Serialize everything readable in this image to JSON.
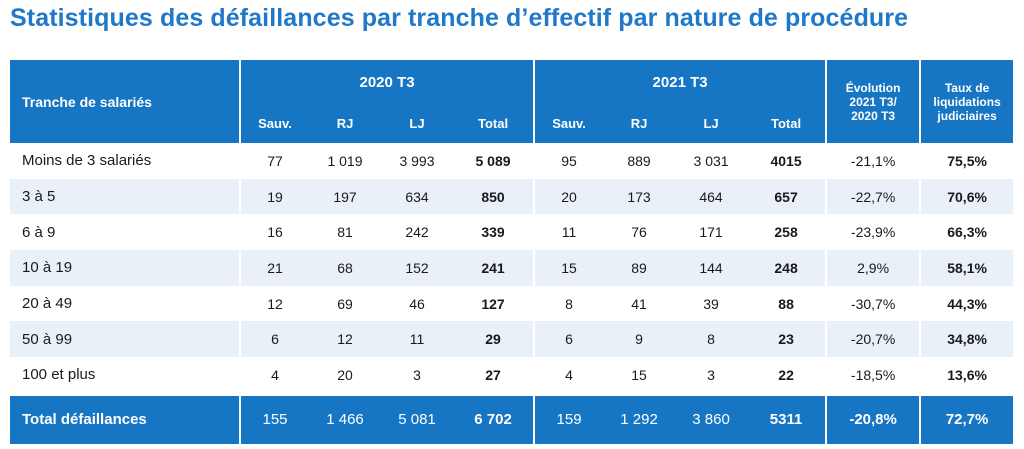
{
  "title": "Statistiques des défaillances par tranche d’effectif par nature de procédure",
  "colors": {
    "header_blue": "#1776c4",
    "title_blue": "#1f78c8",
    "stripe": "#e9f0f8"
  },
  "header": {
    "row_label": "Tranche de salariés",
    "group1": "2020 T3",
    "group2": "2021 T3",
    "evolution": [
      "Évolution",
      "2021 T3/",
      "2020 T3"
    ],
    "taux": [
      "Taux de",
      "liquidations",
      "judiciaires"
    ],
    "subcols": [
      "Sauv.",
      "RJ",
      "LJ",
      "Total"
    ]
  },
  "rows": [
    {
      "label": "Moins de 3 salariés",
      "y2020": [
        "77",
        "1 019",
        "3 993",
        "5 089"
      ],
      "y2021": [
        "95",
        "889",
        "3 031",
        "4015"
      ],
      "evolution": "-21,1%",
      "taux": "75,5%"
    },
    {
      "label": "3 à 5",
      "y2020": [
        "19",
        "197",
        "634",
        "850"
      ],
      "y2021": [
        "20",
        "173",
        "464",
        "657"
      ],
      "evolution": "-22,7%",
      "taux": "70,6%"
    },
    {
      "label": "6 à 9",
      "y2020": [
        "16",
        "81",
        "242",
        "339"
      ],
      "y2021": [
        "11",
        "76",
        "171",
        "258"
      ],
      "evolution": "-23,9%",
      "taux": "66,3%"
    },
    {
      "label": "10 à 19",
      "y2020": [
        "21",
        "68",
        "152",
        "241"
      ],
      "y2021": [
        "15",
        "89",
        "144",
        "248"
      ],
      "evolution": "2,9%",
      "taux": "58,1%"
    },
    {
      "label": "20 à 49",
      "y2020": [
        "12",
        "69",
        "46",
        "127"
      ],
      "y2021": [
        "8",
        "41",
        "39",
        "88"
      ],
      "evolution": "-30,7%",
      "taux": "44,3%"
    },
    {
      "label": "50 à 99",
      "y2020": [
        "6",
        "12",
        "11",
        "29"
      ],
      "y2021": [
        "6",
        "9",
        "8",
        "23"
      ],
      "evolution": "-20,7%",
      "taux": "34,8%"
    },
    {
      "label": "100 et plus",
      "y2020": [
        "4",
        "20",
        "3",
        "27"
      ],
      "y2021": [
        "4",
        "15",
        "3",
        "22"
      ],
      "evolution": "-18,5%",
      "taux": "13,6%"
    }
  ],
  "total": {
    "label": "Total défaillances",
    "y2020": [
      "155",
      "1 466",
      "5 081",
      "6 702"
    ],
    "y2021": [
      "159",
      "1 292",
      "3 860",
      "5311"
    ],
    "evolution": "-20,8%",
    "taux": "72,7%"
  }
}
